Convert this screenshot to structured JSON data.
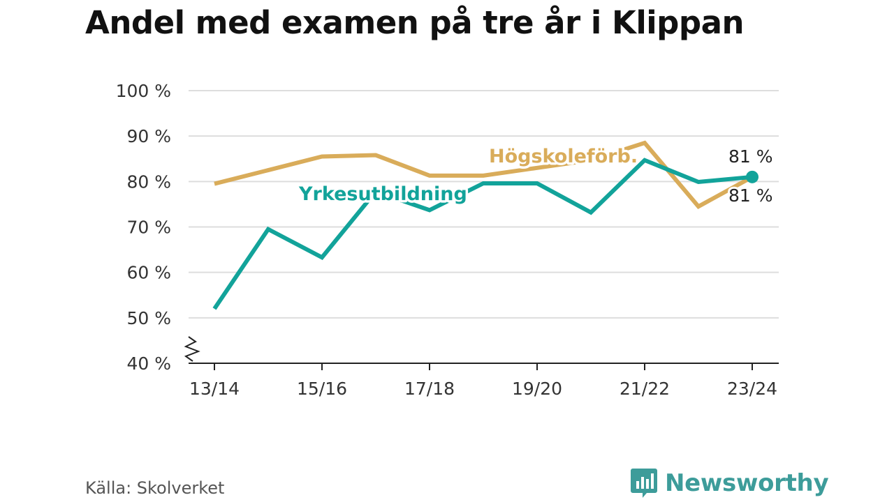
{
  "title": "Andel med examen på tre år i Klippan",
  "source": "Källa: Skolverket",
  "brand": {
    "name": "Newsworthy",
    "icon": "newsworthy-logo-icon",
    "color": "#3d9c9a"
  },
  "chart_data": {
    "type": "line",
    "title": "Andel med examen på tre år i Klippan",
    "xlabel": "",
    "ylabel": "",
    "categories": [
      "13/14",
      "14/15",
      "15/16",
      "16/17",
      "17/18",
      "18/19",
      "19/20",
      "20/21",
      "21/22",
      "22/23",
      "23/24"
    ],
    "x_tick_labels": [
      "13/14",
      "15/16",
      "17/18",
      "19/20",
      "21/22",
      "23/24"
    ],
    "y_ticks": [
      "40 %",
      "50 %",
      "60 %",
      "70 %",
      "80 %",
      "90 %",
      "100 %"
    ],
    "ylim": [
      40,
      100
    ],
    "axis_break": true,
    "grid": true,
    "series": [
      {
        "name": "Högskoleförb.",
        "color": "#d9ac5a",
        "values": [
          79.5,
          82.5,
          85.5,
          85.8,
          81.3,
          81.3,
          83.0,
          84.7,
          88.5,
          74.5,
          81
        ]
      },
      {
        "name": "Yrkesutbildning",
        "color": "#12a39a",
        "values": [
          52,
          69.5,
          63.3,
          77.8,
          73.7,
          79.6,
          79.6,
          73.2,
          84.7,
          79.9,
          81
        ]
      }
    ],
    "end_labels": {
      "Yrkesutbildning": "81 %",
      "Högskoleförb.": "81 %"
    }
  }
}
